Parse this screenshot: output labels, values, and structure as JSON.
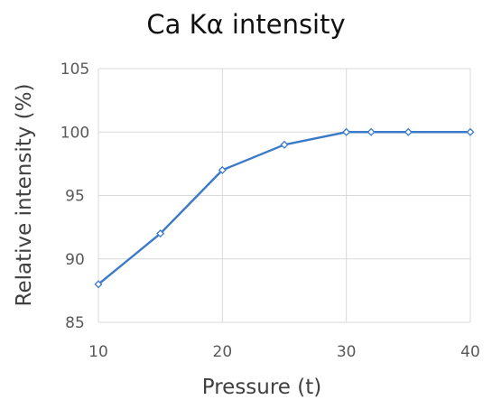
{
  "chart_data": {
    "type": "line",
    "title": "Ca Kα intensity",
    "xlabel": "Pressure (t)",
    "ylabel": "Relative intensity (%)",
    "xlim": [
      10,
      40
    ],
    "ylim": [
      85,
      105
    ],
    "xticks": [
      10,
      20,
      30,
      40
    ],
    "yticks": [
      85,
      90,
      95,
      100,
      105
    ],
    "grid": true,
    "legend": "none",
    "series": [
      {
        "x": [
          10,
          15,
          20,
          25,
          30,
          32,
          35,
          40
        ],
        "y": [
          88,
          92,
          97,
          99,
          100,
          100,
          100,
          100
        ],
        "color": "#3a7ac8",
        "marker": "diamond-open"
      }
    ]
  }
}
